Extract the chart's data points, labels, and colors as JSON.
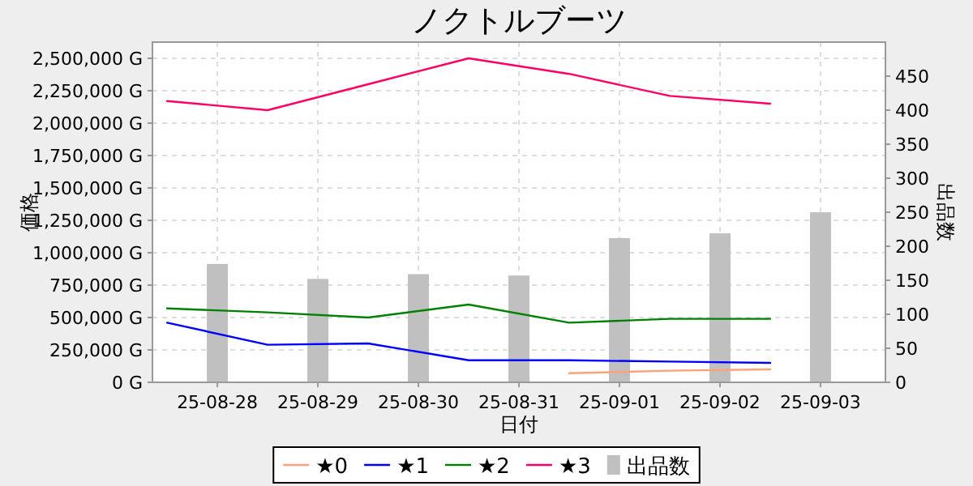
{
  "chart_data": {
    "type": "line",
    "title": "ノクトルブーツ",
    "xlabel": "日付",
    "ylabel": "価格",
    "y2label": "出品数",
    "xlim": [
      "--08-27T20:30",
      "--09-04T03:30"
    ],
    "xticks": [
      {
        "value": "--08-28T12:00",
        "label": "25-08-28"
      },
      {
        "value": "--08-29T12:00",
        "label": "25-08-29"
      },
      {
        "value": "--08-30T12:00",
        "label": "25-08-30"
      },
      {
        "value": "--08-31T12:00",
        "label": "25-08-31"
      },
      {
        "value": "--09-01T12:00",
        "label": "25-09-01"
      },
      {
        "value": "--09-02T12:00",
        "label": "25-09-02"
      },
      {
        "value": "--09-03T12:00",
        "label": "25-09-03"
      }
    ],
    "ylim": [
      0,
      2625000
    ],
    "yticks": [
      {
        "value": 0,
        "label": "0 G"
      },
      {
        "value": 250000,
        "label": "250,000 G"
      },
      {
        "value": 500000,
        "label": "500,000 G"
      },
      {
        "value": 750000,
        "label": "750,000 G"
      },
      {
        "value": 1000000,
        "label": "1,000,000 G"
      },
      {
        "value": 1250000,
        "label": "1,250,000 G"
      },
      {
        "value": 1500000,
        "label": "1,500,000 G"
      },
      {
        "value": 1750000,
        "label": "1,750,000 G"
      },
      {
        "value": 2000000,
        "label": "2,000,000 G"
      },
      {
        "value": 2250000,
        "label": "2,250,000 G"
      },
      {
        "value": 2500000,
        "label": "2,500,000 G"
      }
    ],
    "y2lim": [
      0,
      500
    ],
    "y2ticks": [
      0,
      50,
      100,
      150,
      200,
      250,
      300,
      350,
      400,
      450
    ],
    "grid": true,
    "legend": "bottom",
    "series": [
      {
        "name": "★0",
        "color": "#ffa07a",
        "x": [
          "--09-01",
          "--09-02",
          "--09-03"
        ],
        "values": [
          70000,
          90000,
          100000
        ]
      },
      {
        "name": "★1",
        "color": "#0000ff",
        "x": [
          "--08-28",
          "--08-29",
          "--08-30",
          "--08-31",
          "--09-01",
          "--09-02",
          "--09-03"
        ],
        "values": [
          460000,
          290000,
          300000,
          170000,
          170000,
          160000,
          150000
        ]
      },
      {
        "name": "★2",
        "color": "#008000",
        "x": [
          "--08-28",
          "--08-29",
          "--08-30",
          "--08-31",
          "--09-01",
          "--09-02",
          "--09-03"
        ],
        "values": [
          570000,
          540000,
          500000,
          600000,
          460000,
          490000,
          490000
        ]
      },
      {
        "name": "★3",
        "color": "#ff0066",
        "x": [
          "--08-28",
          "--08-29",
          "--08-30",
          "--08-31",
          "--09-01",
          "--09-02",
          "--09-03"
        ],
        "values": [
          2170000,
          2100000,
          2300000,
          2500000,
          2380000,
          2210000,
          2150000
        ]
      },
      {
        "name": "出品数",
        "type": "bar",
        "axis": "y2",
        "color": "#c0c0c0",
        "x": [
          "--08-28T12:00",
          "--08-29T12:00",
          "--08-30T12:00",
          "--08-31T12:00",
          "--09-01T12:00",
          "--09-02T12:00",
          "--09-03T12:00"
        ],
        "values": [
          174,
          152,
          159,
          157,
          212,
          219,
          250
        ]
      }
    ]
  }
}
